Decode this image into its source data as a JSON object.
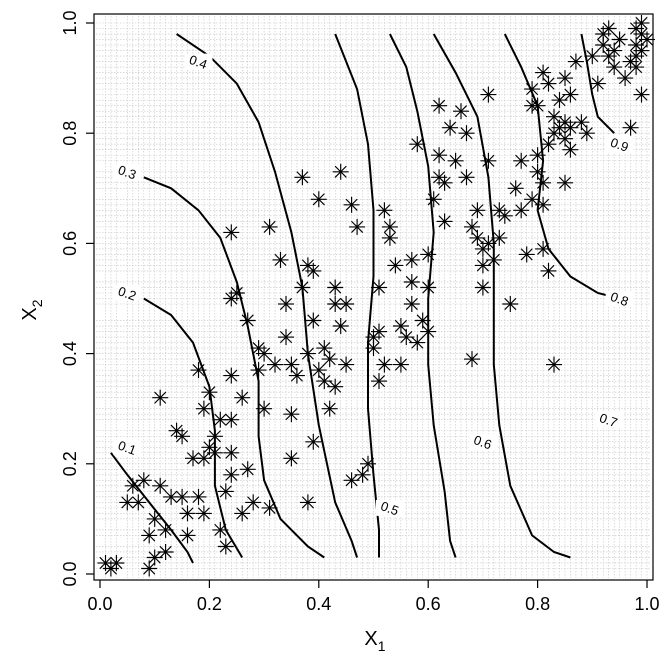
{
  "chart_data": {
    "type": "scatter",
    "xlabel": "X",
    "xlabel_sub": "1",
    "ylabel": "X",
    "ylabel_sub": "2",
    "xlim": [
      0.0,
      1.0
    ],
    "ylim": [
      0.0,
      1.0
    ],
    "xticks": [
      "0.0",
      "0.2",
      "0.4",
      "0.6",
      "0.8",
      "1.0"
    ],
    "yticks": [
      "0.0",
      "0.2",
      "0.4",
      "0.6",
      "0.8",
      "1.0"
    ],
    "grid": "dotted lines at each distinct point coordinate",
    "marker": "asterisk",
    "points": [
      [
        0.01,
        0.02
      ],
      [
        0.02,
        0.01
      ],
      [
        0.03,
        0.02
      ],
      [
        0.05,
        0.13
      ],
      [
        0.06,
        0.16
      ],
      [
        0.07,
        0.13
      ],
      [
        0.08,
        0.17
      ],
      [
        0.09,
        0.01
      ],
      [
        0.09,
        0.07
      ],
      [
        0.1,
        0.03
      ],
      [
        0.1,
        0.1
      ],
      [
        0.11,
        0.16
      ],
      [
        0.11,
        0.32
      ],
      [
        0.12,
        0.08
      ],
      [
        0.12,
        0.04
      ],
      [
        0.13,
        0.14
      ],
      [
        0.14,
        0.26
      ],
      [
        0.15,
        0.14
      ],
      [
        0.15,
        0.25
      ],
      [
        0.16,
        0.07
      ],
      [
        0.16,
        0.11
      ],
      [
        0.17,
        0.21
      ],
      [
        0.18,
        0.37
      ],
      [
        0.19,
        0.3
      ],
      [
        0.18,
        0.14
      ],
      [
        0.19,
        0.21
      ],
      [
        0.19,
        0.11
      ],
      [
        0.2,
        0.33
      ],
      [
        0.2,
        0.23
      ],
      [
        0.21,
        0.25
      ],
      [
        0.21,
        0.22
      ],
      [
        0.22,
        0.08
      ],
      [
        0.22,
        0.28
      ],
      [
        0.23,
        0.15
      ],
      [
        0.23,
        0.05
      ],
      [
        0.24,
        0.62
      ],
      [
        0.24,
        0.5
      ],
      [
        0.24,
        0.36
      ],
      [
        0.24,
        0.28
      ],
      [
        0.24,
        0.22
      ],
      [
        0.24,
        0.18
      ],
      [
        0.25,
        0.51
      ],
      [
        0.26,
        0.32
      ],
      [
        0.26,
        0.11
      ],
      [
        0.27,
        0.46
      ],
      [
        0.27,
        0.19
      ],
      [
        0.28,
        0.13
      ],
      [
        0.29,
        0.41
      ],
      [
        0.29,
        0.37
      ],
      [
        0.3,
        0.4
      ],
      [
        0.3,
        0.3
      ],
      [
        0.31,
        0.63
      ],
      [
        0.31,
        0.12
      ],
      [
        0.32,
        0.38
      ],
      [
        0.33,
        0.57
      ],
      [
        0.34,
        0.49
      ],
      [
        0.34,
        0.43
      ],
      [
        0.35,
        0.38
      ],
      [
        0.35,
        0.29
      ],
      [
        0.35,
        0.21
      ],
      [
        0.36,
        0.36
      ],
      [
        0.37,
        0.72
      ],
      [
        0.37,
        0.52
      ],
      [
        0.38,
        0.13
      ],
      [
        0.38,
        0.4
      ],
      [
        0.38,
        0.56
      ],
      [
        0.39,
        0.55
      ],
      [
        0.39,
        0.46
      ],
      [
        0.39,
        0.24
      ],
      [
        0.4,
        0.68
      ],
      [
        0.4,
        0.37
      ],
      [
        0.41,
        0.41
      ],
      [
        0.41,
        0.35
      ],
      [
        0.42,
        0.3
      ],
      [
        0.42,
        0.39
      ],
      [
        0.43,
        0.49
      ],
      [
        0.43,
        0.34
      ],
      [
        0.43,
        0.52
      ],
      [
        0.44,
        0.73
      ],
      [
        0.44,
        0.45
      ],
      [
        0.45,
        0.49
      ],
      [
        0.45,
        0.38
      ],
      [
        0.46,
        0.67
      ],
      [
        0.46,
        0.17
      ],
      [
        0.47,
        0.63
      ],
      [
        0.48,
        0.18
      ],
      [
        0.49,
        0.2
      ],
      [
        0.5,
        0.43
      ],
      [
        0.5,
        0.41
      ],
      [
        0.51,
        0.52
      ],
      [
        0.51,
        0.44
      ],
      [
        0.51,
        0.35
      ],
      [
        0.52,
        0.66
      ],
      [
        0.52,
        0.38
      ],
      [
        0.53,
        0.63
      ],
      [
        0.53,
        0.61
      ],
      [
        0.54,
        0.56
      ],
      [
        0.55,
        0.45
      ],
      [
        0.55,
        0.38
      ],
      [
        0.56,
        0.43
      ],
      [
        0.57,
        0.53
      ],
      [
        0.57,
        0.49
      ],
      [
        0.57,
        0.57
      ],
      [
        0.58,
        0.42
      ],
      [
        0.58,
        0.78
      ],
      [
        0.59,
        0.46
      ],
      [
        0.6,
        0.58
      ],
      [
        0.6,
        0.52
      ],
      [
        0.6,
        0.44
      ],
      [
        0.61,
        0.68
      ],
      [
        0.62,
        0.85
      ],
      [
        0.62,
        0.72
      ],
      [
        0.62,
        0.76
      ],
      [
        0.63,
        0.71
      ],
      [
        0.63,
        0.64
      ],
      [
        0.64,
        0.81
      ],
      [
        0.65,
        0.75
      ],
      [
        0.66,
        0.84
      ],
      [
        0.67,
        0.8
      ],
      [
        0.67,
        0.72
      ],
      [
        0.68,
        0.63
      ],
      [
        0.68,
        0.39
      ],
      [
        0.69,
        0.61
      ],
      [
        0.69,
        0.66
      ],
      [
        0.7,
        0.59
      ],
      [
        0.7,
        0.56
      ],
      [
        0.7,
        0.52
      ],
      [
        0.71,
        0.87
      ],
      [
        0.71,
        0.75
      ],
      [
        0.71,
        0.6
      ],
      [
        0.72,
        0.57
      ],
      [
        0.73,
        0.61
      ],
      [
        0.73,
        0.66
      ],
      [
        0.74,
        0.65
      ],
      [
        0.75,
        0.49
      ],
      [
        0.76,
        0.7
      ],
      [
        0.77,
        0.75
      ],
      [
        0.77,
        0.66
      ],
      [
        0.78,
        0.58
      ],
      [
        0.79,
        0.88
      ],
      [
        0.79,
        0.85
      ],
      [
        0.79,
        0.68
      ],
      [
        0.8,
        0.76
      ],
      [
        0.8,
        0.73
      ],
      [
        0.8,
        0.85
      ],
      [
        0.81,
        0.91
      ],
      [
        0.81,
        0.71
      ],
      [
        0.81,
        0.67
      ],
      [
        0.81,
        0.59
      ],
      [
        0.82,
        0.55
      ],
      [
        0.82,
        0.78
      ],
      [
        0.82,
        0.89
      ],
      [
        0.83,
        0.8
      ],
      [
        0.83,
        0.83
      ],
      [
        0.83,
        0.38
      ],
      [
        0.84,
        0.81
      ],
      [
        0.84,
        0.86
      ],
      [
        0.85,
        0.82
      ],
      [
        0.85,
        0.79
      ],
      [
        0.85,
        0.71
      ],
      [
        0.85,
        0.9
      ],
      [
        0.86,
        0.81
      ],
      [
        0.86,
        0.77
      ],
      [
        0.86,
        0.87
      ],
      [
        0.87,
        0.93
      ],
      [
        0.88,
        0.82
      ],
      [
        0.89,
        0.8
      ],
      [
        0.9,
        0.94
      ],
      [
        0.91,
        0.89
      ],
      [
        0.92,
        0.96
      ],
      [
        0.92,
        0.98
      ],
      [
        0.93,
        0.94
      ],
      [
        0.93,
        0.99
      ],
      [
        0.94,
        0.92
      ],
      [
        0.94,
        0.95
      ],
      [
        0.95,
        0.97
      ],
      [
        0.96,
        0.9
      ],
      [
        0.97,
        0.93
      ],
      [
        0.97,
        0.81
      ],
      [
        0.98,
        0.96
      ],
      [
        0.98,
        0.94
      ],
      [
        0.98,
        0.99
      ],
      [
        0.99,
        0.98
      ],
      [
        0.99,
        0.87
      ],
      [
        0.99,
        1.0
      ],
      [
        1.0,
        0.97
      ],
      [
        0.99,
        0.95
      ],
      [
        0.98,
        0.92
      ]
    ],
    "contours": [
      {
        "level": "0.1",
        "label_at": [
          0.05,
          0.23
        ],
        "points": [
          [
            0.02,
            0.22
          ],
          [
            0.05,
            0.18
          ],
          [
            0.09,
            0.13
          ],
          [
            0.13,
            0.08
          ],
          [
            0.16,
            0.04
          ],
          [
            0.17,
            0.02
          ]
        ]
      },
      {
        "level": "0.2",
        "label_at": [
          0.05,
          0.51
        ],
        "points": [
          [
            0.08,
            0.5
          ],
          [
            0.13,
            0.47
          ],
          [
            0.17,
            0.42
          ],
          [
            0.2,
            0.34
          ],
          [
            0.21,
            0.26
          ],
          [
            0.21,
            0.16
          ],
          [
            0.23,
            0.08
          ],
          [
            0.26,
            0.03
          ]
        ]
      },
      {
        "level": "0.3",
        "label_at": [
          0.05,
          0.73
        ],
        "points": [
          [
            0.08,
            0.72
          ],
          [
            0.13,
            0.7
          ],
          [
            0.18,
            0.66
          ],
          [
            0.22,
            0.61
          ],
          [
            0.25,
            0.53
          ],
          [
            0.27,
            0.45
          ],
          [
            0.29,
            0.35
          ],
          [
            0.29,
            0.25
          ],
          [
            0.3,
            0.17
          ],
          [
            0.33,
            0.1
          ],
          [
            0.38,
            0.05
          ],
          [
            0.41,
            0.03
          ]
        ]
      },
      {
        "level": "0.4",
        "label_at": [
          0.18,
          0.93
        ],
        "points": [
          [
            0.14,
            0.98
          ],
          [
            0.2,
            0.94
          ],
          [
            0.25,
            0.89
          ],
          [
            0.29,
            0.82
          ],
          [
            0.32,
            0.73
          ],
          [
            0.35,
            0.62
          ],
          [
            0.37,
            0.52
          ],
          [
            0.38,
            0.4
          ],
          [
            0.4,
            0.27
          ],
          [
            0.43,
            0.13
          ],
          [
            0.46,
            0.06
          ],
          [
            0.47,
            0.03
          ]
        ]
      },
      {
        "level": "0.5",
        "label_at": [
          0.53,
          0.12
        ],
        "points": [
          [
            0.43,
            0.98
          ],
          [
            0.47,
            0.88
          ],
          [
            0.49,
            0.78
          ],
          [
            0.5,
            0.66
          ],
          [
            0.5,
            0.54
          ],
          [
            0.49,
            0.42
          ],
          [
            0.49,
            0.3
          ],
          [
            0.5,
            0.18
          ],
          [
            0.51,
            0.08
          ],
          [
            0.51,
            0.03
          ]
        ]
      },
      {
        "level": "0.6",
        "label_at": [
          0.7,
          0.24
        ],
        "points": [
          [
            0.53,
            0.98
          ],
          [
            0.56,
            0.92
          ],
          [
            0.58,
            0.84
          ],
          [
            0.6,
            0.74
          ],
          [
            0.61,
            0.62
          ],
          [
            0.6,
            0.5
          ],
          [
            0.6,
            0.38
          ],
          [
            0.61,
            0.27
          ],
          [
            0.63,
            0.15
          ],
          [
            0.64,
            0.06
          ],
          [
            0.65,
            0.03
          ]
        ]
      },
      {
        "level": "0.7",
        "label_at": [
          0.93,
          0.28
        ],
        "points": [
          [
            0.61,
            0.98
          ],
          [
            0.65,
            0.91
          ],
          [
            0.69,
            0.83
          ],
          [
            0.71,
            0.72
          ],
          [
            0.72,
            0.6
          ],
          [
            0.72,
            0.48
          ],
          [
            0.72,
            0.38
          ],
          [
            0.73,
            0.27
          ],
          [
            0.75,
            0.16
          ],
          [
            0.79,
            0.07
          ],
          [
            0.83,
            0.04
          ],
          [
            0.86,
            0.03
          ]
        ]
      },
      {
        "level": "0.8",
        "label_at": [
          0.95,
          0.5
        ],
        "points": [
          [
            0.74,
            0.98
          ],
          [
            0.77,
            0.92
          ],
          [
            0.8,
            0.85
          ],
          [
            0.81,
            0.75
          ],
          [
            0.8,
            0.66
          ],
          [
            0.82,
            0.59
          ],
          [
            0.86,
            0.54
          ],
          [
            0.91,
            0.51
          ],
          [
            0.95,
            0.5
          ]
        ]
      },
      {
        "level": "0.9",
        "label_at": [
          0.95,
          0.78
        ],
        "points": [
          [
            0.88,
            0.98
          ],
          [
            0.89,
            0.93
          ],
          [
            0.9,
            0.87
          ],
          [
            0.91,
            0.83
          ],
          [
            0.94,
            0.8
          ]
        ]
      }
    ]
  }
}
